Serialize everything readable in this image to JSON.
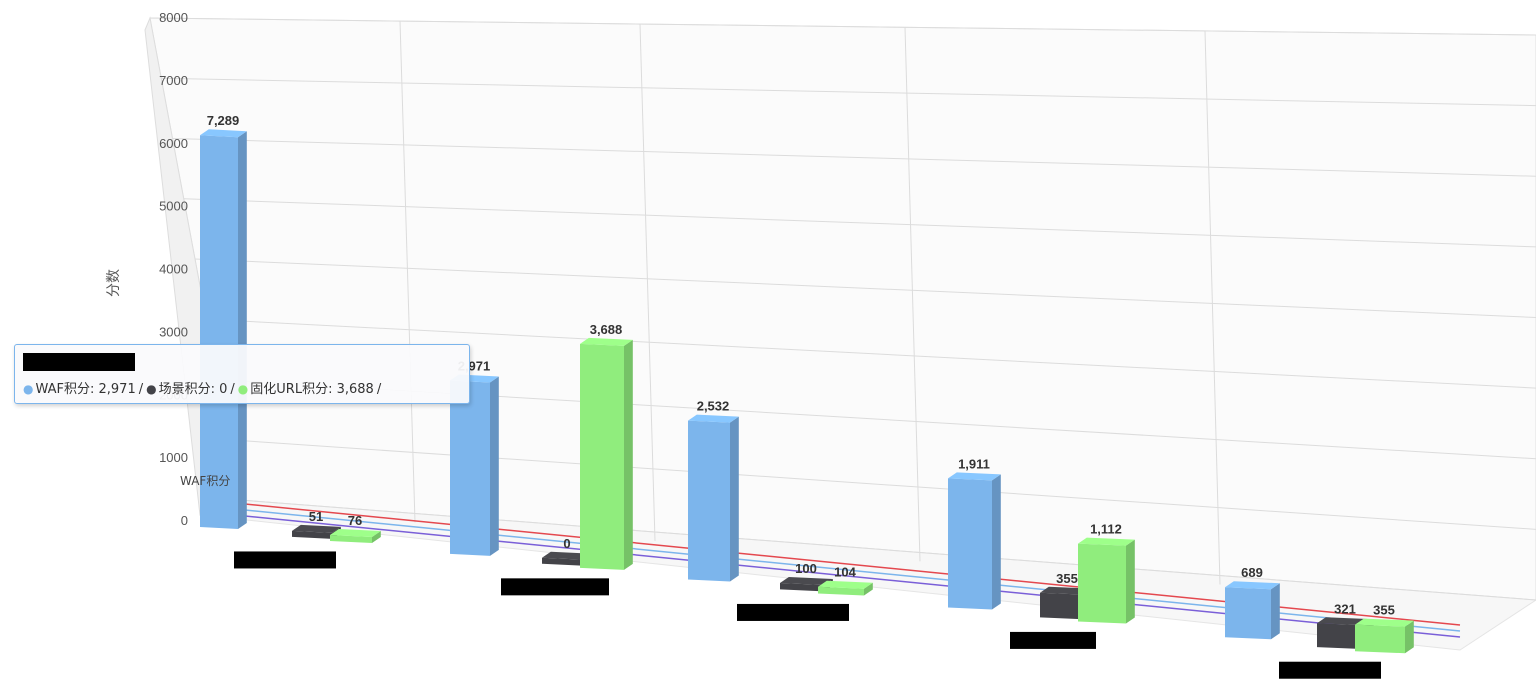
{
  "chart_data": {
    "type": "bar",
    "ylabel": "分数",
    "ylim": [
      0,
      8000
    ],
    "y_ticks": [
      "0",
      "1000",
      "2000",
      "3000",
      "4000",
      "5000",
      "6000",
      "7000",
      "8000"
    ],
    "categories": [
      "",
      "",
      "",
      "",
      ""
    ],
    "series": [
      {
        "name": "WAF积分",
        "color": "#7cb5ec",
        "values": [
          7289,
          2971,
          2532,
          1911,
          689
        ],
        "labels": [
          "7,289",
          "2,971",
          "2,532",
          "1,911",
          "689"
        ]
      },
      {
        "name": "场景积分",
        "color": "#434348",
        "values": [
          51,
          0,
          100,
          355,
          321
        ],
        "labels": [
          "51",
          "0",
          "100",
          "355",
          "321"
        ]
      },
      {
        "name": "固化URL积分",
        "color": "#90ed7d",
        "values": [
          76,
          3688,
          104,
          1112,
          355
        ],
        "labels": [
          "76",
          "3,688",
          "104",
          "1,112",
          "355"
        ]
      }
    ],
    "three_d": true,
    "grid": true,
    "legend": "none"
  },
  "tooltip": {
    "waf": "WAF积分: 2,971",
    "scene": "场景积分: 0",
    "url": "固化URL积分: 3,688",
    "sep": "/"
  },
  "series_tag": "WAF积分"
}
